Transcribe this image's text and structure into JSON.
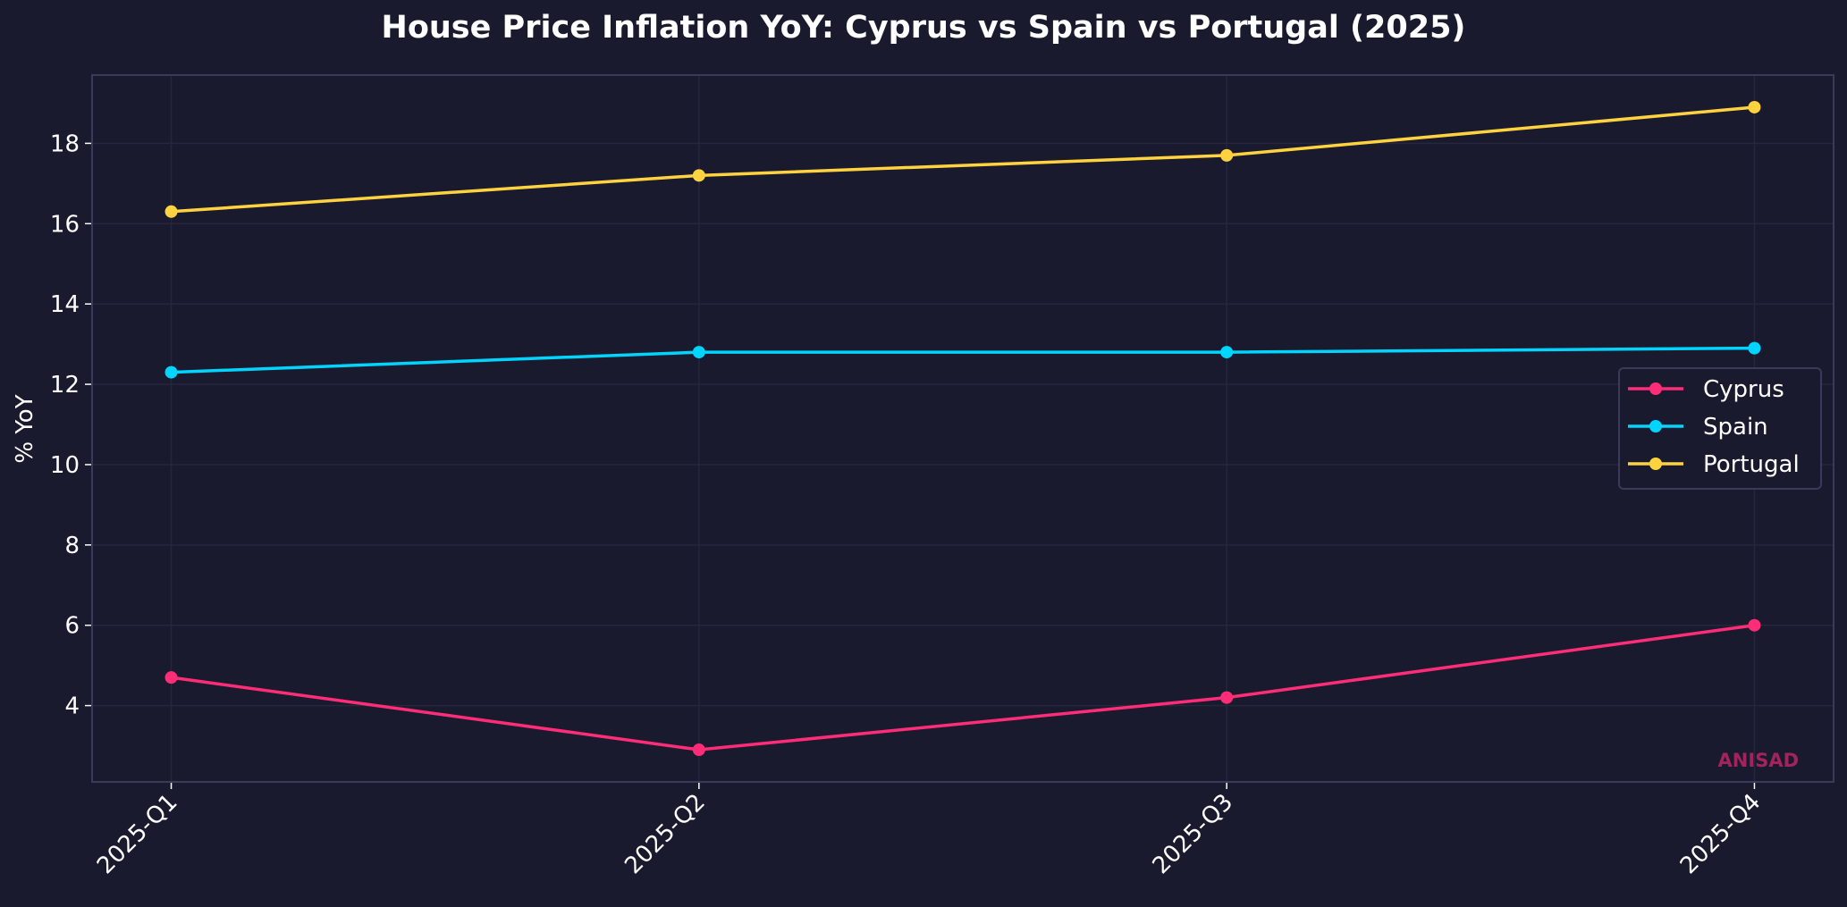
{
  "chart_data": {
    "type": "line",
    "title": "House Price Inflation YoY: Cyprus vs Spain vs Portugal (2025)",
    "xlabel": "",
    "ylabel": "% YoY",
    "categories": [
      "2025-Q1",
      "2025-Q2",
      "2025-Q3",
      "2025-Q4"
    ],
    "ylim": [
      2.1,
      19.7
    ],
    "yticks": [
      4,
      6,
      8,
      10,
      12,
      14,
      16,
      18
    ],
    "grid": true,
    "legend_position": "center-right",
    "series": [
      {
        "name": "Cyprus",
        "color": "#ff2d78",
        "values": [
          4.7,
          2.9,
          4.2,
          6.0
        ]
      },
      {
        "name": "Spain",
        "color": "#00d4ff",
        "values": [
          12.3,
          12.8,
          12.8,
          12.9
        ]
      },
      {
        "name": "Portugal",
        "color": "#ffd23f",
        "values": [
          16.3,
          17.2,
          17.7,
          18.9
        ]
      }
    ],
    "watermark": "ANISAD",
    "colors": {
      "background": "#1a1a2e",
      "axes": "#3a3a5c",
      "grid": "#26263c",
      "text": "#ffffff",
      "watermark": "#a3245c"
    }
  }
}
